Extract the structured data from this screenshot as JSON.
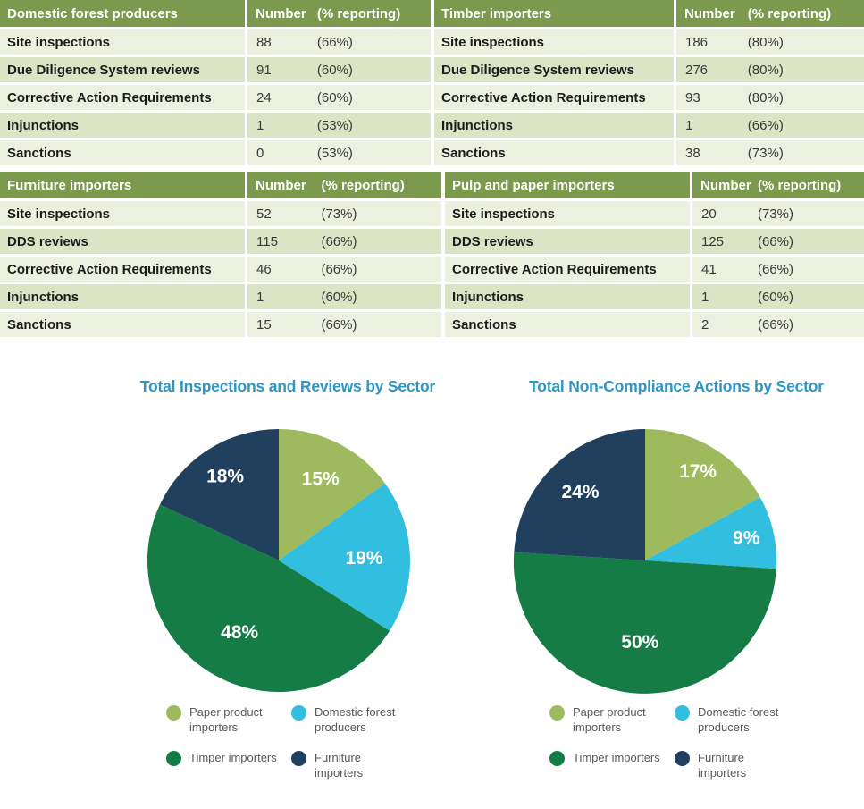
{
  "colors": {
    "table_header_green": "#7C9A4E",
    "row_light": "#ECF1DF",
    "row_dark": "#DBE5C5",
    "title_blue": "#2D96C5",
    "legend_text_gray": "#595959",
    "pie_olive": "#9EB95E",
    "pie_light_blue": "#32BEDE",
    "pie_dark_green": "#157C45",
    "pie_navy": "#20405E"
  },
  "tables": [
    {
      "title": "Domestic forest producers",
      "header_number": "Number",
      "header_pct": "(% reporting)",
      "rows": [
        {
          "label": "Site inspections",
          "number": "88",
          "pct": "(66%)"
        },
        {
          "label": "Due Diligence System reviews",
          "number": "91",
          "pct": "(60%)"
        },
        {
          "label": "Corrective Action Requirements",
          "number": "24",
          "pct": "(60%)"
        },
        {
          "label": "Injunctions",
          "number": "1",
          "pct": "(53%)"
        },
        {
          "label": "Sanctions",
          "number": "0",
          "pct": "(53%)"
        }
      ]
    },
    {
      "title": "Timber importers",
      "header_number": "Number",
      "header_pct": "(% reporting)",
      "rows": [
        {
          "label": "Site inspections",
          "number": "186",
          "pct": "(80%)"
        },
        {
          "label": "Due Diligence System reviews",
          "number": "276",
          "pct": "(80%)"
        },
        {
          "label": "Corrective Action Requirements",
          "number": "93",
          "pct": "(80%)"
        },
        {
          "label": "Injunctions",
          "number": "1",
          "pct": "(66%)"
        },
        {
          "label": "Sanctions",
          "number": "38",
          "pct": "(73%)"
        }
      ]
    },
    {
      "title": "Furniture importers",
      "header_number": "Number",
      "header_pct": "(% reporting)",
      "rows": [
        {
          "label": "Site inspections",
          "number": "52",
          "pct": "(73%)"
        },
        {
          "label": "DDS reviews",
          "number": "115",
          "pct": "(66%)"
        },
        {
          "label": "Corrective Action Requirements",
          "number": "46",
          "pct": "(66%)"
        },
        {
          "label": "Injunctions",
          "number": "1",
          "pct": "(60%)"
        },
        {
          "label": "Sanctions",
          "number": "15",
          "pct": "(66%)"
        }
      ]
    },
    {
      "title": "Pulp and paper importers",
      "header_number": "Number",
      "header_pct": "(% reporting)",
      "rows": [
        {
          "label": "Site inspections",
          "number": "20",
          "pct": "(73%)"
        },
        {
          "label": "DDS reviews",
          "number": "125",
          "pct": "(66%)"
        },
        {
          "label": "Corrective Action Requirements",
          "number": "41",
          "pct": "(66%)"
        },
        {
          "label": "Injunctions",
          "number": "1",
          "pct": "(60%)"
        },
        {
          "label": "Sanctions",
          "number": "2",
          "pct": "(66%)"
        }
      ]
    }
  ],
  "chart_data": [
    {
      "type": "pie",
      "title": "Total Inspections and Reviews by Sector",
      "labels": [
        "Paper product importers",
        "Domestic forest producers",
        "Timper importers",
        "Furniture importers"
      ],
      "values": [
        15,
        19,
        48,
        18
      ],
      "unit": "%",
      "colors": [
        "#9EB95E",
        "#32BEDE",
        "#157C45",
        "#20405E"
      ],
      "start_angle_deg": 0,
      "direction": "clockwise",
      "label_radius": [
        0.7,
        0.65,
        0.62,
        0.76
      ],
      "legend_position": "bottom"
    },
    {
      "type": "pie",
      "title": "Total Non-Compliance Actions by Sector",
      "labels": [
        "Paper product importers",
        "Domestic forest producers",
        "Timper importers",
        "Furniture importers"
      ],
      "values": [
        17,
        9,
        50,
        24
      ],
      "unit": "%",
      "colors": [
        "#9EB95E",
        "#32BEDE",
        "#157C45",
        "#20405E"
      ],
      "start_angle_deg": 0,
      "direction": "clockwise",
      "label_radius": [
        0.79,
        0.79,
        0.62,
        0.72
      ],
      "legend_position": "bottom"
    }
  ]
}
